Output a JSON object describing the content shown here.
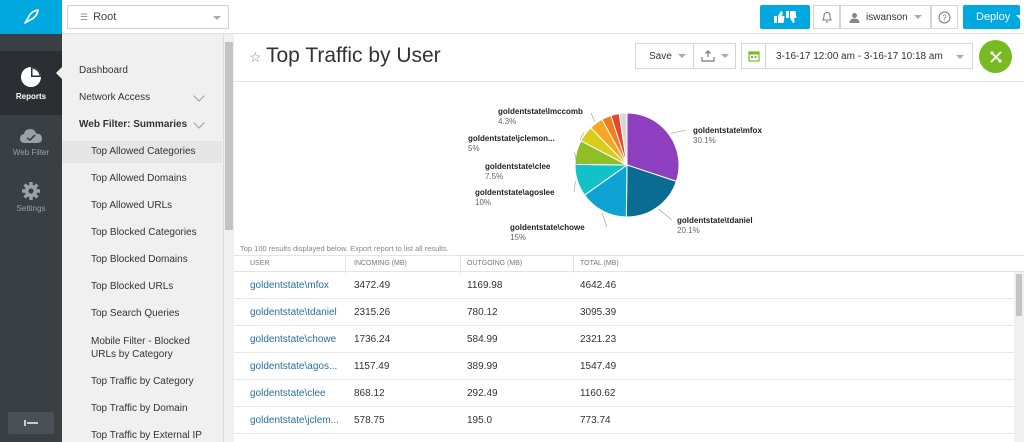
{
  "rail": {
    "items": [
      {
        "label": "Reports",
        "icon": "pie-chart-icon"
      },
      {
        "label": "Web Filter",
        "icon": "cloud-icon"
      },
      {
        "label": "Settings",
        "icon": "gear-icon"
      }
    ]
  },
  "topbar": {
    "root_label": "Root",
    "user_label": "iswanson",
    "deploy_label": "Deploy"
  },
  "subnav": {
    "items": [
      {
        "label": "Dashboard"
      },
      {
        "label": "Network Access"
      },
      {
        "label": "Web Filter: Summaries"
      },
      {
        "label": "Top Allowed Categories"
      },
      {
        "label": "Top Allowed Domains"
      },
      {
        "label": "Top Allowed URLs"
      },
      {
        "label": "Top Blocked Categories"
      },
      {
        "label": "Top Blocked Domains"
      },
      {
        "label": "Top Blocked URLs"
      },
      {
        "label": "Top Search Queries"
      },
      {
        "label": "Mobile Filter - Blocked URLs by Category"
      },
      {
        "label": "Top Traffic by Category"
      },
      {
        "label": "Top Traffic by Domain"
      },
      {
        "label": "Top Traffic by External IP"
      }
    ]
  },
  "header": {
    "title": "Top Traffic by User",
    "save_label": "Save",
    "date_range": "3-16-17 12:00 am - 3-16-17 10:18 am"
  },
  "chart_data": {
    "type": "pie",
    "slices": [
      {
        "label": "goldentstate\\mfox",
        "pct_label": "30.1%",
        "value": 30.1,
        "color": "#8e3fbf"
      },
      {
        "label": "goldentstate\\tdaniel",
        "pct_label": "20.1%",
        "value": 20.1,
        "color": "#0b6c93"
      },
      {
        "label": "goldentstate\\chowe",
        "pct_label": "15%",
        "value": 15.0,
        "color": "#0fa3d3"
      },
      {
        "label": "goldentstate\\agoslee",
        "pct_label": "10%",
        "value": 10.0,
        "color": "#12c2c6"
      },
      {
        "label": "goldentstate\\clee",
        "pct_label": "7.5%",
        "value": 7.5,
        "color": "#8fbf26"
      },
      {
        "label": "goldentstate\\jclemon...",
        "pct_label": "5%",
        "value": 5.0,
        "color": "#d9cc1a"
      },
      {
        "label": "goldentstate\\lmccomb",
        "pct_label": "4.3%",
        "value": 4.3,
        "color": "#f5a623"
      },
      {
        "label": "",
        "pct_label": "",
        "value": 3.0,
        "color": "#f07e1e"
      },
      {
        "label": "",
        "pct_label": "",
        "value": 2.6,
        "color": "#e8452c"
      },
      {
        "label": "",
        "pct_label": "",
        "value": 2.4,
        "color": "#d9d9d9"
      }
    ]
  },
  "results_note": "Top 100 results displayed below. Export report to list all results.",
  "table": {
    "columns": [
      "USER",
      "INCOMING (MB)",
      "OUTGOING (MB)",
      "TOTAL (MB)"
    ],
    "rows": [
      [
        "goldentstate\\mfox",
        "3472.49",
        "1169.98",
        "4642.46"
      ],
      [
        "goldentstate\\tdaniel",
        "2315.26",
        "780.12",
        "3095.39"
      ],
      [
        "goldentstate\\chowe",
        "1736.24",
        "584.99",
        "2321.23"
      ],
      [
        "goldentstate\\agos...",
        "1157.49",
        "389.99",
        "1547.49"
      ],
      [
        "goldentstate\\clee",
        "868.12",
        "292.49",
        "1160.62"
      ],
      [
        "goldentstate\\jclem...",
        "578.75",
        "195.0",
        "773.74"
      ]
    ]
  }
}
